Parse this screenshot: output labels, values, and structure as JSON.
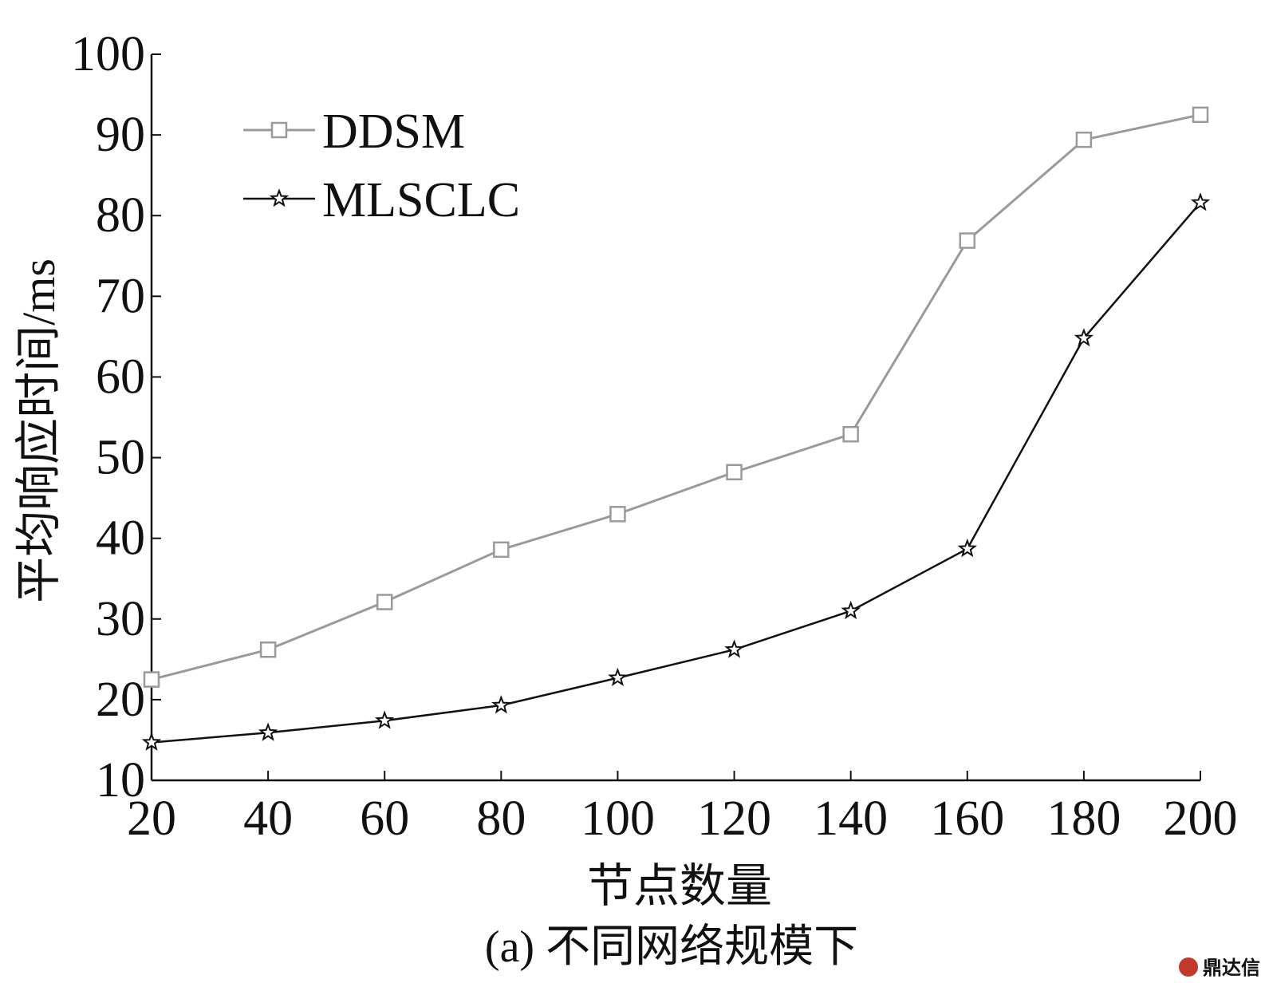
{
  "chart_data": {
    "type": "line",
    "xlabel": "节点数量",
    "ylabel": "平均响应时间/ms",
    "caption": "(a)  不同网络规模下",
    "x": [
      20,
      40,
      60,
      80,
      100,
      120,
      140,
      160,
      180,
      200
    ],
    "xlim": [
      20,
      200
    ],
    "ylim": [
      10,
      100
    ],
    "xticks": [
      20,
      40,
      60,
      80,
      100,
      120,
      140,
      160,
      180,
      200
    ],
    "yticks": [
      10,
      20,
      30,
      40,
      50,
      60,
      70,
      80,
      90,
      100
    ],
    "grid": false,
    "legend_position": "top-left",
    "series": [
      {
        "name": "DDSM",
        "marker": "square",
        "color": "#9a9a9a",
        "values": [
          22.5,
          26.2,
          32.1,
          38.6,
          43.0,
          48.2,
          52.9,
          76.9,
          89.4,
          92.5
        ]
      },
      {
        "name": "MLSCLC",
        "marker": "star",
        "color": "#111111",
        "values": [
          14.7,
          15.9,
          17.4,
          19.3,
          22.7,
          26.2,
          31.0,
          38.7,
          64.8,
          81.6
        ]
      }
    ]
  },
  "watermark": {
    "text": "鼎达信",
    "icon": "logo-badge-icon"
  }
}
